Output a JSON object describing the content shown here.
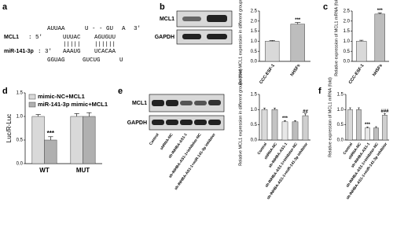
{
  "panel_labels": [
    "a",
    "b",
    "c",
    "d",
    "e",
    "f"
  ],
  "sequence": {
    "mcl1_label": "MCL1",
    "mcl1_prime": ": 5'",
    "mcl1_end": "3'",
    "mir_label": "miR-141-3p",
    "mir_prime": ": 3'",
    "top": [
      "AUUAA",
      "U - - GU",
      "A"
    ],
    "upper": [
      "UUUAC",
      "AGUGUU"
    ],
    "pairs": [
      "|||||",
      "||||||"
    ],
    "lower": [
      "AAAUG",
      "UCACAA"
    ],
    "bottom": [
      "GGUAG",
      "GUCUG",
      "U"
    ]
  },
  "blots": {
    "b": [
      "MCL1",
      "GAPDH"
    ],
    "e": [
      "MCL1",
      "GAPDH"
    ]
  },
  "chart_data": [
    {
      "type": "bar",
      "ylabel": "Relative MCL1 expression in different groups (fold)",
      "categories": [
        "CCC-ESF-1",
        "hHSFs"
      ],
      "values": [
        1.0,
        1.85
      ],
      "errors": [
        0.04,
        0.08
      ],
      "annotations": [
        null,
        "***"
      ],
      "colors": [
        "#d9d9d9",
        "#bdbdbd"
      ],
      "ylim": [
        0,
        2.5
      ],
      "yticks": [
        {
          "value": 0,
          "label": "0.0"
        },
        0.5,
        {
          "value": 1,
          "label": "1.0"
        },
        1.5,
        {
          "value": 2,
          "label": "2.0"
        },
        2.5
      ]
    },
    {
      "type": "bar",
      "ylabel": "Relative expression of MCL1 mRNA (fold)",
      "categories": [
        "CCC-ESF-1",
        "hHSFs"
      ],
      "values": [
        1.0,
        2.35
      ],
      "errors": [
        0.05,
        0.06
      ],
      "annotations": [
        null,
        "***"
      ],
      "colors": [
        "#d9d9d9",
        "#bdbdbd"
      ],
      "ylim": [
        0,
        2.5
      ],
      "yticks": [
        {
          "value": 0,
          "label": "0.0"
        },
        0.5,
        {
          "value": 1,
          "label": "1.0"
        },
        1.5,
        {
          "value": 2,
          "label": "2.0"
        },
        2.5
      ]
    },
    {
      "type": "bar",
      "ylabel": "Luc/R-Luc",
      "categories": [
        "WT",
        "MUT"
      ],
      "series": [
        {
          "name": "mimic-NC+MCL1",
          "color": "#d9d9d9",
          "values": [
            1.0,
            1.0
          ],
          "errors": [
            0.04,
            0.06
          ],
          "annotations": [
            null,
            null
          ]
        },
        {
          "name": "miR-141-3p mimic+MCL1",
          "color": "#b0b0b0",
          "values": [
            0.5,
            1.0
          ],
          "errors": [
            0.07,
            0.08
          ],
          "annotations": [
            "***",
            null
          ]
        }
      ],
      "ylim": [
        0,
        1.5
      ],
      "yticks": [
        {
          "value": 0,
          "label": "0.0"
        },
        0.5,
        {
          "value": 1,
          "label": "1.0"
        },
        1.5
      ]
    },
    {
      "type": "bar",
      "ylabel": "Relative MCL1 expression in different groups (fold)",
      "categories": [
        "Control",
        "shRNA-NC",
        "sh-INHBA-AS1-1",
        "sh-INHBA-AS1-1+inhibitor-NC",
        "sh-INHBA-AS1-1+miR-141-3p inhibitor"
      ],
      "values": [
        1.0,
        1.0,
        0.6,
        0.6,
        0.8
      ],
      "errors": [
        0.05,
        0.05,
        0.04,
        0.04,
        0.06
      ],
      "annotations": [
        null,
        null,
        "***",
        null,
        "##"
      ],
      "colors": [
        "#d9d9d9",
        "#c4c4c4",
        "#e8e8e8",
        "#bdbdbd",
        "#cfcfcf"
      ],
      "ylim": [
        0,
        1.5
      ],
      "yticks": [
        {
          "value": 0,
          "label": "0.0"
        },
        0.5,
        {
          "value": 1,
          "label": "1.0"
        },
        1.5
      ]
    },
    {
      "type": "bar",
      "ylabel": "Relative expression of MCL1 mRNA (fold)",
      "categories": [
        "Control",
        "shRNA-NC",
        "sh-INHBA-AS1-1",
        "sh-INHBA-AS1-1+inhibitor-NC",
        "sh-INHBA-AS1-1+miR-141-3p inhibitor"
      ],
      "values": [
        1.0,
        1.0,
        0.4,
        0.4,
        0.82
      ],
      "errors": [
        0.06,
        0.06,
        0.03,
        0.04,
        0.05
      ],
      "annotations": [
        null,
        null,
        "***",
        null,
        "###"
      ],
      "colors": [
        "#d9d9d9",
        "#c4c4c4",
        "#e8e8e8",
        "#bdbdbd",
        "#cfcfcf"
      ],
      "ylim": [
        0,
        1.5
      ],
      "yticks": [
        {
          "value": 0,
          "label": "0.0"
        },
        0.5,
        {
          "value": 1,
          "label": "1.0"
        },
        1.5
      ]
    }
  ]
}
